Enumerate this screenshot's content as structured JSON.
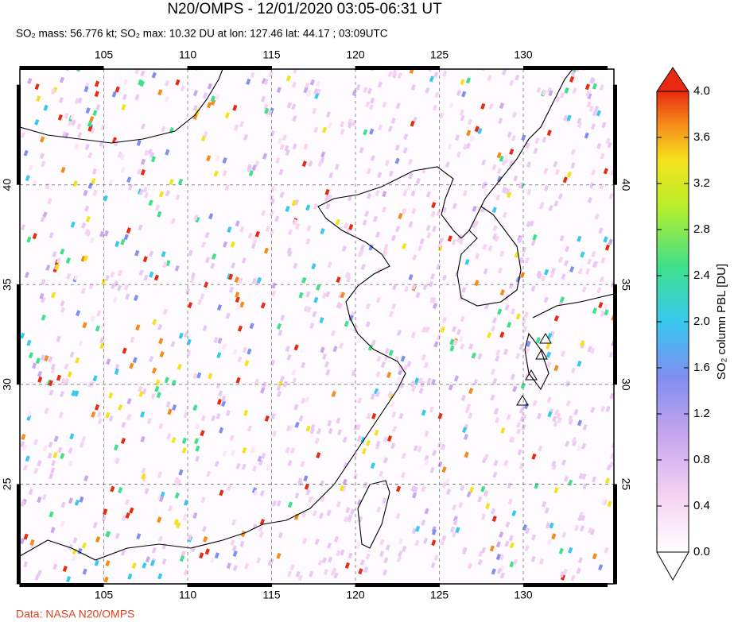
{
  "title": "N20/OMPS - 12/01/2020 03:05-06:31 UT",
  "subtitle": "SO₂ mass: 56.776 kt; SO₂ max: 10.32 DU at lon: 127.46 lat: 44.17 ; 03:09UTC",
  "map": {
    "lon_range": [
      100,
      135.4
    ],
    "lat_range": [
      20,
      45.8
    ],
    "lon_ticks": [
      105,
      110,
      115,
      120,
      125,
      130
    ],
    "lat_ticks": [
      25,
      30,
      35,
      40
    ]
  },
  "colorbar": {
    "label": "SO₂ column PBL [DU]",
    "range": [
      0,
      4
    ],
    "ticks": [
      {
        "value": 0,
        "label": "0.0"
      },
      0.4,
      0.8,
      1.2,
      1.6,
      {
        "value": 2,
        "label": "2.0"
      },
      2.4,
      2.8,
      3.2,
      3.6,
      {
        "value": 4,
        "label": "4.0"
      }
    ]
  },
  "footer": "Data: NASA N20/OMPS"
}
